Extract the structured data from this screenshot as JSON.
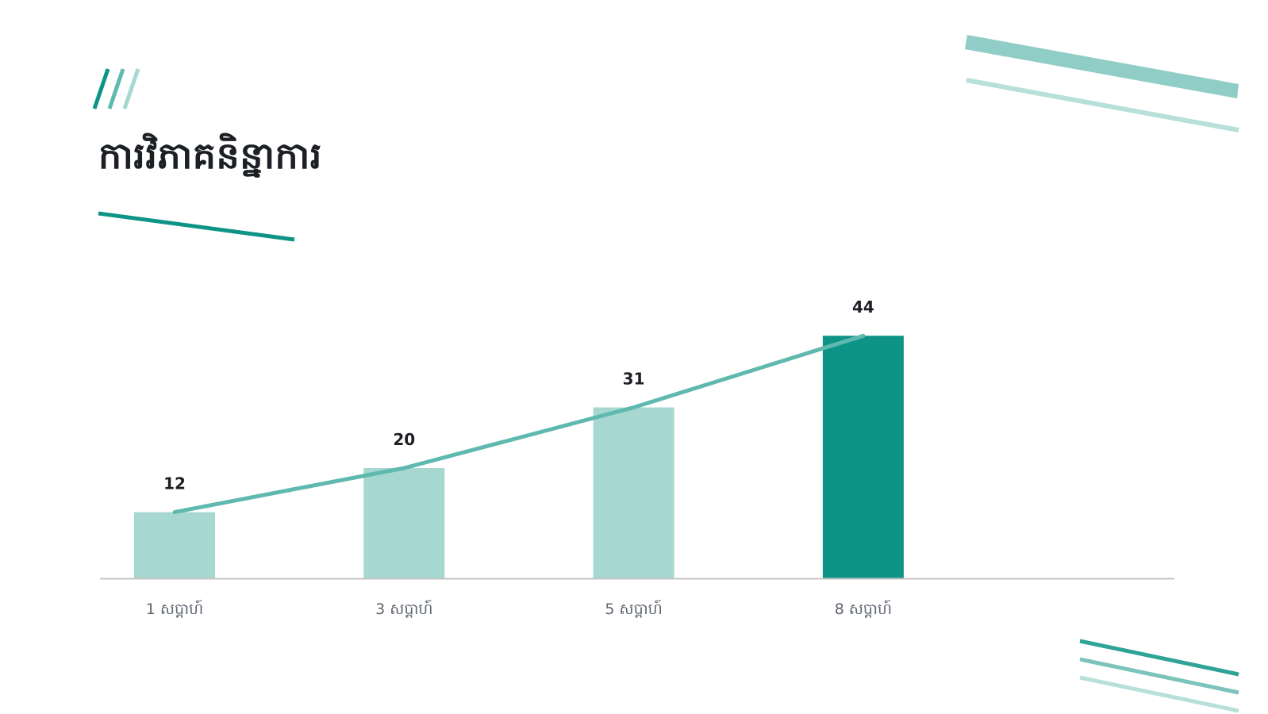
{
  "slide": {
    "title": "ការវិភាគនិន្នាការ"
  },
  "colors": {
    "accent_dark": "#0e9486",
    "accent_mid": "#5fb9ae",
    "accent_light": "#a6d7d0",
    "accent_pale": "#b8e0da",
    "axis": "#c4c4c4",
    "text_dark": "#1c1f24",
    "text_muted": "#5f6670"
  },
  "icons": [
    "diagonal-stripes-icon"
  ],
  "chart_data": {
    "type": "bar",
    "categories": [
      "1 សប្ដាហ៍",
      "3 សប្ដាហ៍",
      "5 សប្ដាហ៍",
      "8 សប្ដាហ៍"
    ],
    "values": [
      12,
      20,
      31,
      44
    ],
    "data_labels": [
      "12",
      "20",
      "31",
      "44"
    ],
    "highlight_index": 3,
    "overlay": "line",
    "ylim": [
      0,
      50
    ],
    "grid": false,
    "legend": "none",
    "title": "",
    "xlabel": "",
    "ylabel": ""
  }
}
